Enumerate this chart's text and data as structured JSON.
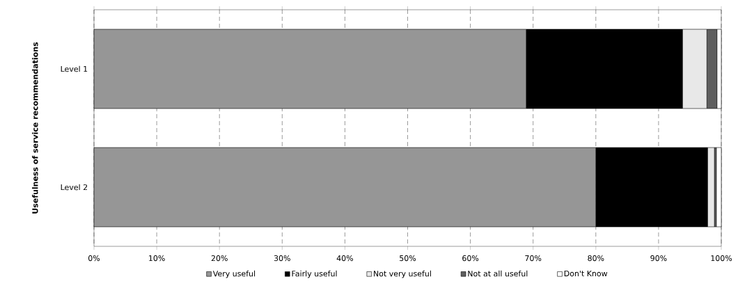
{
  "chart_data": {
    "type": "bar",
    "orientation": "horizontal",
    "stacked": true,
    "ylabel": "Usefulness of service recommendations",
    "categories": [
      "Level 1",
      "Level 2"
    ],
    "series": [
      {
        "name": "Very useful",
        "color": "#969696",
        "values": [
          68.9,
          80.0
        ]
      },
      {
        "name": "Fairly useful",
        "color": "#000000",
        "values": [
          24.9,
          17.8
        ]
      },
      {
        "name": "Not very useful",
        "color": "#e8e8e8",
        "values": [
          3.9,
          1.1
        ]
      },
      {
        "name": "Not at all useful",
        "color": "#5f5f5f",
        "values": [
          1.6,
          0.3
        ]
      },
      {
        "name": "Don't Know",
        "color": "#ffffff",
        "values": [
          0.7,
          0.8
        ]
      }
    ],
    "xlim": [
      0,
      100
    ],
    "xticks": [
      {
        "value": 0,
        "label": "0%"
      },
      {
        "value": 10,
        "label": "10%"
      },
      {
        "value": 20,
        "label": "20%"
      },
      {
        "value": 30,
        "label": "30%"
      },
      {
        "value": 40,
        "label": "40%"
      },
      {
        "value": 50,
        "label": "50%"
      },
      {
        "value": 60,
        "label": "60%"
      },
      {
        "value": 70,
        "label": "70%"
      },
      {
        "value": 80,
        "label": "80%"
      },
      {
        "value": 90,
        "label": "90%"
      },
      {
        "value": 100,
        "label": "100%"
      }
    ],
    "grid": "x",
    "legend": "bottom"
  }
}
